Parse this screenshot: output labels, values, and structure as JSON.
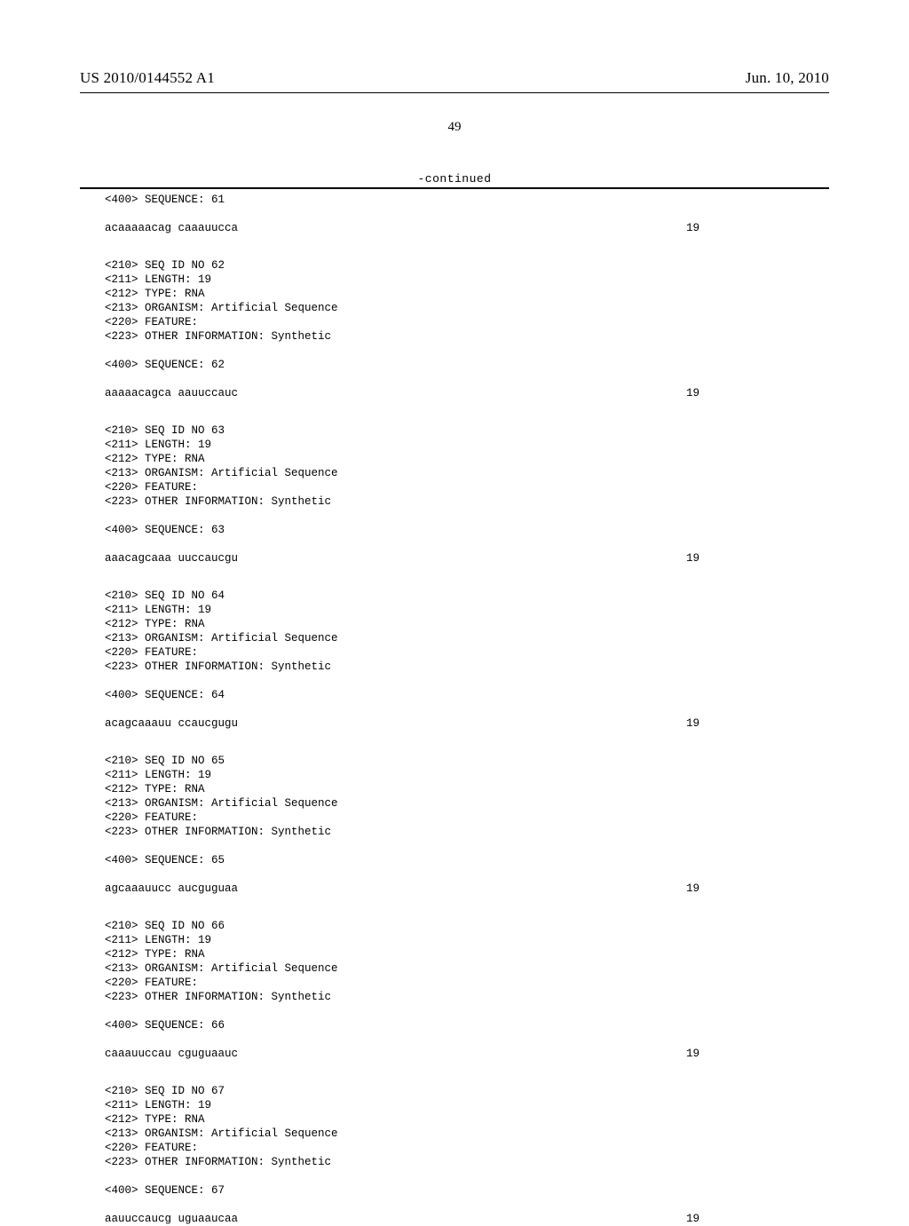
{
  "header": {
    "pub_number": "US 2010/0144552 A1",
    "pub_date": "Jun. 10, 2010"
  },
  "page_number": "49",
  "continued_label": "-continued",
  "entries": [
    {
      "pre_lines": [
        "<400> SEQUENCE: 61"
      ],
      "seq_text": "acaaaaacag caaauucca",
      "seq_len": "19"
    },
    {
      "meta": [
        "<210> SEQ ID NO 62",
        "<211> LENGTH: 19",
        "<212> TYPE: RNA",
        "<213> ORGANISM: Artificial Sequence",
        "<220> FEATURE:",
        "<223> OTHER INFORMATION: Synthetic"
      ],
      "seq_label": "<400> SEQUENCE: 62",
      "seq_text": "aaaaacagca aauuccauc",
      "seq_len": "19"
    },
    {
      "meta": [
        "<210> SEQ ID NO 63",
        "<211> LENGTH: 19",
        "<212> TYPE: RNA",
        "<213> ORGANISM: Artificial Sequence",
        "<220> FEATURE:",
        "<223> OTHER INFORMATION: Synthetic"
      ],
      "seq_label": "<400> SEQUENCE: 63",
      "seq_text": "aaacagcaaa uuccaucgu",
      "seq_len": "19"
    },
    {
      "meta": [
        "<210> SEQ ID NO 64",
        "<211> LENGTH: 19",
        "<212> TYPE: RNA",
        "<213> ORGANISM: Artificial Sequence",
        "<220> FEATURE:",
        "<223> OTHER INFORMATION: Synthetic"
      ],
      "seq_label": "<400> SEQUENCE: 64",
      "seq_text": "acagcaaauu ccaucgugu",
      "seq_len": "19"
    },
    {
      "meta": [
        "<210> SEQ ID NO 65",
        "<211> LENGTH: 19",
        "<212> TYPE: RNA",
        "<213> ORGANISM: Artificial Sequence",
        "<220> FEATURE:",
        "<223> OTHER INFORMATION: Synthetic"
      ],
      "seq_label": "<400> SEQUENCE: 65",
      "seq_text": "agcaaauucc aucguguaa",
      "seq_len": "19"
    },
    {
      "meta": [
        "<210> SEQ ID NO 66",
        "<211> LENGTH: 19",
        "<212> TYPE: RNA",
        "<213> ORGANISM: Artificial Sequence",
        "<220> FEATURE:",
        "<223> OTHER INFORMATION: Synthetic"
      ],
      "seq_label": "<400> SEQUENCE: 66",
      "seq_text": "caaauuccau cguguaauc",
      "seq_len": "19"
    },
    {
      "meta": [
        "<210> SEQ ID NO 67",
        "<211> LENGTH: 19",
        "<212> TYPE: RNA",
        "<213> ORGANISM: Artificial Sequence",
        "<220> FEATURE:",
        "<223> OTHER INFORMATION: Synthetic"
      ],
      "seq_label": "<400> SEQUENCE: 67",
      "seq_text": "aauuccaucg uguaaucaa",
      "seq_len": "19"
    }
  ]
}
